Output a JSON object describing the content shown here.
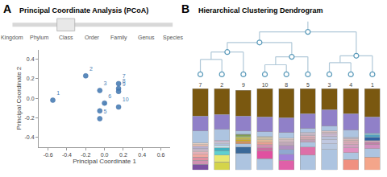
{
  "chart_data": [
    {
      "type": "scatter",
      "title": "Principal Coordinate Analysis (PCoA)",
      "annotations": [
        "A"
      ],
      "slider": {
        "labels": [
          "Kingdom",
          "Phylum",
          "Class",
          "Order",
          "Family",
          "Genus",
          "Species"
        ],
        "selected": "Class"
      },
      "x": [
        -0.55,
        -0.2,
        -0.05,
        -0.05,
        -0.05,
        0.0,
        0.15,
        0.15,
        0.15,
        0.15
      ],
      "values": [
        -0.02,
        0.23,
        0.08,
        -0.13,
        -0.21,
        -0.05,
        0.15,
        0.1,
        0.07,
        -0.09
      ],
      "labels": [
        "1",
        "2",
        "3",
        "4",
        "5",
        "6",
        "7",
        "8",
        "9",
        "10"
      ],
      "x_label": "Principal Coordinate 1",
      "y_label": "Principal Coordinate 2",
      "xlim": [
        -0.7,
        0.7
      ],
      "ylim": [
        -0.5,
        0.5
      ],
      "xticks": [
        -0.6,
        -0.4,
        -0.2,
        {
          "value": 0,
          "label": "0.0"
        },
        0.2,
        0.4,
        0.6
      ],
      "yticks": [
        -0.4,
        -0.2,
        {
          "value": 0,
          "label": "0.0"
        },
        0.2,
        0.4
      ],
      "color": "#4a7fb5",
      "grid": false
    },
    {
      "type": "bar",
      "stacked": true,
      "categories": [
        "7",
        "2",
        "9",
        "10",
        "8",
        "5",
        "3",
        "4",
        "1"
      ],
      "series": [
        {
          "values": [
            0.07,
            0.1,
            0.2,
            0.14,
            0.12,
            0.18,
            0.25,
            0.13,
            0.16
          ],
          "colors": [
            "#7a50a0",
            "#d4d44a",
            "#adc4e0",
            "#adc4e0",
            "#e060a8",
            "#adc4e0",
            "#adc4e0",
            "#f09080",
            "#f4a58a"
          ]
        },
        {
          "values": [
            0.05,
            0.08,
            0.08,
            0.09,
            0.07,
            0.1,
            0.07,
            0.08,
            0.1
          ],
          "colors": [
            "#d090b0",
            "#e8e870",
            "#3a6898",
            "#e050a0",
            "#a080d8",
            "#dd70a8",
            "#b8c8e0",
            "#adc4e0",
            "#adc4e0"
          ]
        },
        {
          "values": [
            0.04,
            0.05,
            0.04,
            0.04,
            0.06,
            0.06,
            0.05,
            0.06,
            0.05
          ],
          "colors": [
            "#e090a0",
            "#60d0d0",
            "#adc4e0",
            "#c870a0",
            "#90a8d0",
            "#adc4e0",
            "#c0c8e0",
            "#e090c0",
            "#d090c0"
          ]
        },
        {
          "values": [
            0.03,
            0.04,
            0.03,
            0.04,
            0.05,
            0.03,
            0.04,
            0.04,
            0.03
          ],
          "colors": [
            "#f0a8a0",
            "#40b0c0",
            "#d09060",
            "#d090b0",
            "#b090c0",
            "#c0a0b8",
            "#b8c0d8",
            "#d0a0c0",
            "#c080a8"
          ]
        },
        {
          "values": [
            0.03,
            0.03,
            0.02,
            0.03,
            0.04,
            0.03,
            0.03,
            0.03,
            0.02
          ],
          "colors": [
            "#e8b0b8",
            "#c0e0e8",
            "#d0a820",
            "#e8a090",
            "#c0a8b8",
            "#d0a8b0",
            "#c8b8d0",
            "#d8a8b8",
            "#d0a8b8"
          ]
        },
        {
          "values": [
            0.02,
            0.02,
            0.02,
            0.03,
            0.03,
            0.02,
            0.02,
            0.02,
            0.04
          ],
          "colors": [
            "#d8c0c8",
            "#b0c0e0",
            "#c8b840",
            "#e0b898",
            "#d0b8c0",
            "#e0b0b8",
            "#d0b8c8",
            "#e0b0b8",
            "#3060a0"
          ]
        },
        {
          "values": [
            0.02,
            0.02,
            0.02,
            0.02,
            0.02,
            0.02,
            0.02,
            0.02,
            0.03
          ],
          "colors": [
            "#c8b8d0",
            "#c8d0e0",
            "#b0c060",
            "#d8c8a8",
            "#e0c8c0",
            "#c8b8c8",
            "#d8c0c0",
            "#d8b8b8",
            "#50a0c0"
          ]
        },
        {
          "values": [
            0.03,
            0.02,
            0.02,
            0.02,
            0.07,
            0.02,
            0.06,
            0.02,
            0.02
          ],
          "colors": [
            "#b8b0d0",
            "#d0b8d0",
            "#80a050",
            "#c8c0a8",
            "#adc4e0",
            "#d0c0d0",
            "#adc4e0",
            "#c0b8c8",
            "#80c0d0"
          ]
        },
        {
          "values": [
            0.02,
            0.14,
            0.01,
            0.06,
            0.18,
            0.05,
            0.2,
            0.09,
            0.2
          ],
          "colors": [
            "#f0c0b0",
            "#adc4e0",
            "#608040",
            "#adc4e0",
            "#9080c8",
            "#adc4e0",
            "#9080c8",
            "#adc4e0",
            "#9080c8"
          ]
        },
        {
          "values": [
            0.02,
            0.18,
            0.04,
            0.18,
            0.36,
            0.18,
            0.26,
            0.2,
            0.35
          ],
          "colors": [
            "#e8d0c0",
            "#9080c8",
            "#adc4e0",
            "#9080c8",
            "#7a5810",
            "#9080c8",
            "#7a5810",
            "#9080c8",
            "#7a5810"
          ]
        },
        {
          "values": [
            0.15,
            0.32,
            0.18,
            0.35,
            null,
            0.31,
            null,
            0.31,
            null
          ],
          "colors": [
            "#adc4e0",
            "#7a5810",
            "#9080c8",
            "#7a5810",
            null,
            "#7a5810",
            null,
            "#7a5810",
            null
          ]
        },
        {
          "values": [
            0.18,
            null,
            0.32,
            null,
            null,
            null,
            null,
            null,
            null
          ],
          "colors": [
            "#9080c8",
            null,
            "#7a5810",
            null,
            null,
            null,
            null,
            null,
            null
          ]
        },
        {
          "values": [
            0.34,
            null,
            null,
            null,
            null,
            null,
            null,
            null,
            null
          ],
          "colors": [
            "#7a5810",
            null,
            null,
            null,
            null,
            null,
            null,
            null,
            null
          ]
        }
      ],
      "ylim": [
        0,
        1
      ],
      "tick_labels": "x",
      "grid": false
    },
    {
      "type": "dendrogram",
      "title": "Hierarchical Clustering Dendrogram",
      "annotations": [
        "B"
      ],
      "merges": [
        {
          "left": 0,
          "right": 1,
          "y": 0.28
        },
        {
          "left": 9,
          "right": 2,
          "y": 0.42
        },
        {
          "left": 3,
          "right": 4,
          "y": 0.18
        },
        {
          "left": 11,
          "right": 5,
          "y": 0.33
        },
        {
          "left": 10,
          "right": 12,
          "y": 0.6
        },
        {
          "left": 6,
          "right": 7,
          "y": 0.22
        },
        {
          "left": 14,
          "right": 8,
          "y": 0.35
        },
        {
          "left": 13,
          "right": 15,
          "y": 0.8
        }
      ],
      "ylim": [
        0,
        1
      ],
      "tick_labels": false,
      "colors": [
        "#b0c8d8",
        "#5a9aba"
      ]
    }
  ]
}
